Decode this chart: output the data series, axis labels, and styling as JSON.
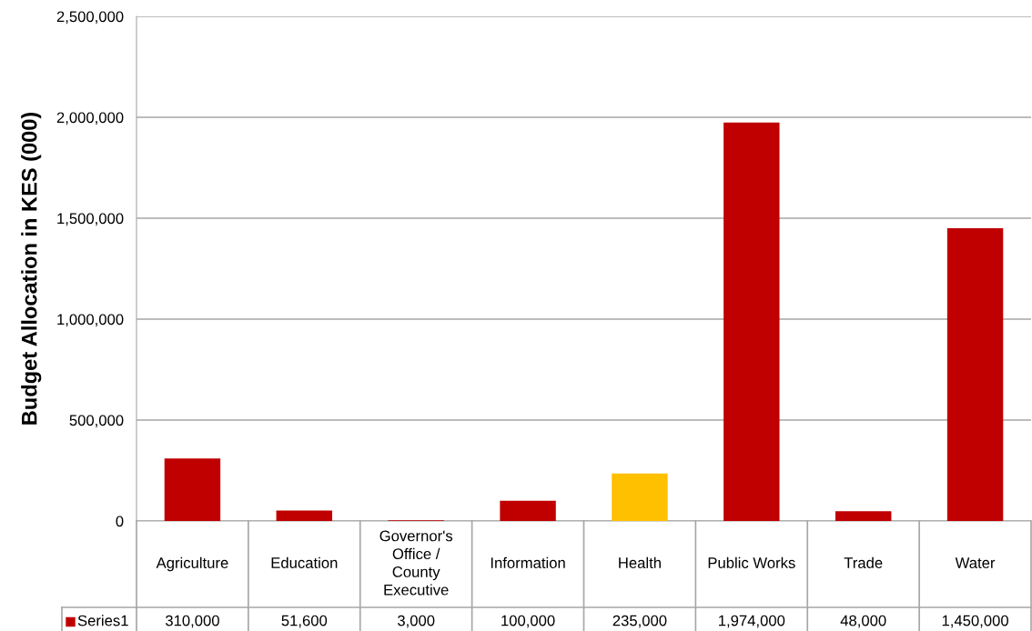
{
  "chart_data": {
    "type": "bar",
    "ylabel": "Budget Allocation in KES (000)",
    "categories": [
      "Agriculture",
      "Education",
      "Governor's\nOffice /\nCounty\nExecutive",
      "Information",
      "Health",
      "Public Works",
      "Trade",
      "Water"
    ],
    "series": [
      {
        "name": "Series1",
        "color": "#c00000",
        "colors": [
          "#c00000",
          "#c00000",
          "#c00000",
          "#c00000",
          "#ffc000",
          "#c00000",
          "#c00000",
          "#c00000"
        ],
        "values": [
          310000,
          51600,
          3000,
          100000,
          235000,
          1974000,
          48000,
          1450000
        ],
        "value_labels": [
          "310,000",
          "51,600",
          "3,000",
          "100,000",
          "235,000",
          "1,974,000",
          "48,000",
          "1,450,000"
        ]
      }
    ],
    "ylim": [
      0,
      2500000
    ],
    "yticks": [
      {
        "value": 0,
        "label": "0"
      },
      {
        "value": 500000,
        "label": "500,000"
      },
      {
        "value": 1000000,
        "label": "1,000,000"
      },
      {
        "value": 1500000,
        "label": "1,500,000"
      },
      {
        "value": 2000000,
        "label": "2,000,000"
      },
      {
        "value": 2500000,
        "label": "2,500,000"
      }
    ],
    "grid": "y",
    "legend": "bottom"
  }
}
